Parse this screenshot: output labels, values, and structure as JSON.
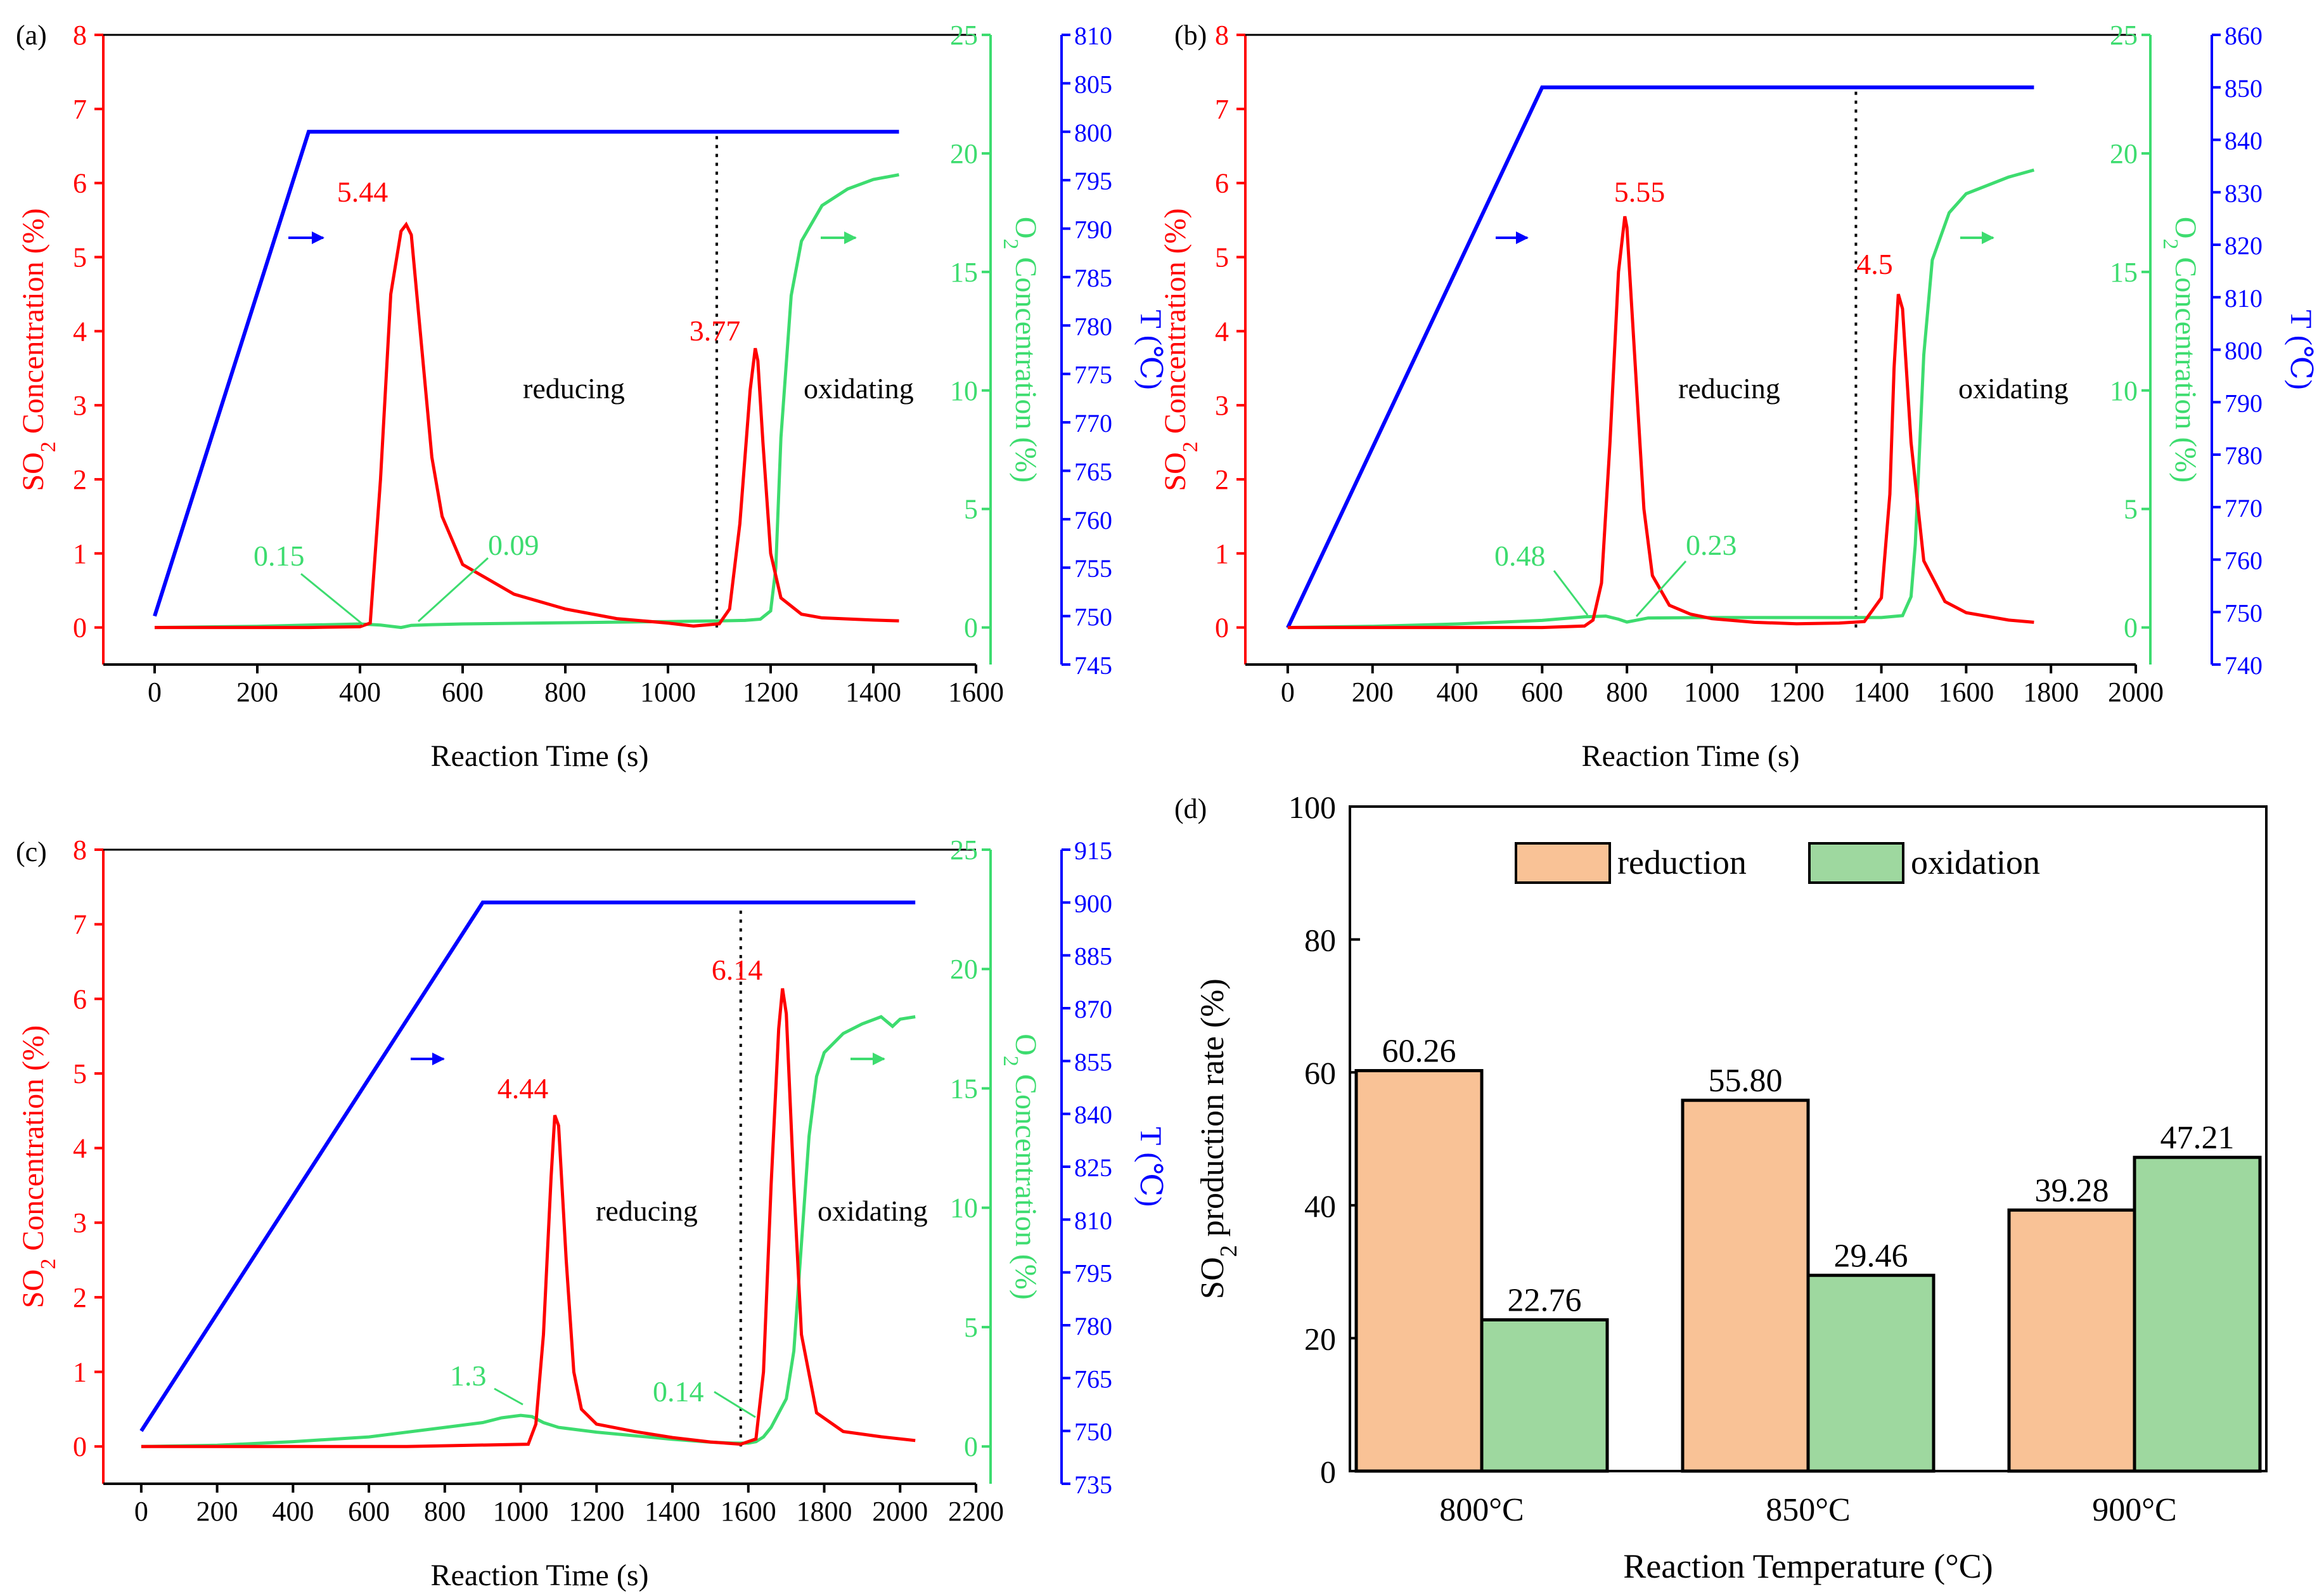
{
  "figure": {
    "colors": {
      "so2": "#ff0000",
      "o2": "#3ddc6f",
      "temp": "#0000ff",
      "frame": "#000000",
      "reduction_fill": "#f9c296",
      "oxidation_fill": "#9ed89f"
    }
  },
  "chart_data": [
    {
      "type": "line",
      "panel": "(a)",
      "xlabel": "Reaction Time (s)",
      "x_ticks": [
        "0",
        "200",
        "400",
        "600",
        "800",
        "1000",
        "1200",
        "1400",
        "1600"
      ],
      "xlim": [
        -100,
        1600
      ],
      "y_left": {
        "label_main": "SO",
        "label_sub": "2",
        "label_rest": " Concentration (%)",
        "ticks": [
          "0",
          "1",
          "2",
          "3",
          "4",
          "5",
          "6",
          "7",
          "8"
        ],
        "ylim": [
          -0.5,
          8
        ]
      },
      "y_o2": {
        "label_main": "O",
        "label_sub": "2",
        "label_rest": " Concentration (%)",
        "ticks": [
          "0",
          "5",
          "10",
          "15",
          "20",
          "25"
        ],
        "ylim": [
          -1.5625,
          25
        ]
      },
      "y_temp": {
        "label": "T (℃)",
        "ticks": [
          "745",
          "750",
          "755",
          "760",
          "765",
          "770",
          "775",
          "780",
          "785",
          "790",
          "795",
          "800",
          "805",
          "810"
        ],
        "ylim": [
          745,
          810
        ]
      },
      "series": [
        {
          "name": "SO2",
          "axis": "left",
          "color": "#ff0000",
          "x": [
            0,
            300,
            400,
            420,
            440,
            460,
            480,
            490,
            500,
            520,
            540,
            560,
            600,
            700,
            800,
            900,
            1000,
            1050,
            1100,
            1120,
            1140,
            1160,
            1170,
            1175,
            1185,
            1200,
            1220,
            1260,
            1300,
            1400,
            1450
          ],
          "y": [
            0,
            0,
            0.01,
            0.06,
            2.0,
            4.5,
            5.35,
            5.44,
            5.3,
            3.8,
            2.3,
            1.5,
            0.85,
            0.45,
            0.25,
            0.12,
            0.06,
            0.02,
            0.05,
            0.25,
            1.4,
            3.2,
            3.77,
            3.6,
            2.5,
            1.0,
            0.4,
            0.18,
            0.13,
            0.1,
            0.09
          ]
        },
        {
          "name": "O2",
          "axis": "o2",
          "color": "#3ddc6f",
          "x": [
            0,
            200,
            300,
            400,
            440,
            460,
            480,
            500,
            540,
            600,
            800,
            1000,
            1100,
            1150,
            1180,
            1200,
            1210,
            1220,
            1240,
            1260,
            1300,
            1350,
            1400,
            1450
          ],
          "y": [
            0,
            0.05,
            0.1,
            0.15,
            0.1,
            0.05,
            0,
            0.09,
            0.12,
            0.15,
            0.2,
            0.25,
            0.28,
            0.3,
            0.35,
            0.7,
            2.5,
            8,
            14,
            16.3,
            17.8,
            18.5,
            18.9,
            19.1
          ]
        },
        {
          "name": "T",
          "axis": "temp",
          "color": "#0000ff",
          "x": [
            0,
            300,
            1450
          ],
          "y": [
            750,
            800,
            800
          ]
        }
      ],
      "vline_x": 1095,
      "annotations": [
        {
          "text": "5.44",
          "x": 490,
          "y": 5.44,
          "color": "#ff0000"
        },
        {
          "text": "3.77",
          "x": 1172,
          "y": 3.77,
          "color": "#ff0000"
        },
        {
          "text": "0.15",
          "x": 420,
          "y": 0.15,
          "color": "#3ddc6f"
        },
        {
          "text": "0.09",
          "x": 500,
          "y": 0.09,
          "color": "#3ddc6f"
        },
        {
          "text": "reducing"
        },
        {
          "text": "oxidating"
        }
      ]
    },
    {
      "type": "line",
      "panel": "(b)",
      "xlabel": "Reaction Time (s)",
      "x_ticks": [
        "0",
        "200",
        "400",
        "600",
        "800",
        "1000",
        "1200",
        "1400",
        "1600",
        "1800",
        "2000"
      ],
      "xlim": [
        -100,
        2000
      ],
      "y_left": {
        "label_main": "SO",
        "label_sub": "2",
        "label_rest": " Concentration (%)",
        "ticks": [
          "0",
          "1",
          "2",
          "3",
          "4",
          "5",
          "6",
          "7",
          "8"
        ],
        "ylim": [
          -0.5,
          8
        ]
      },
      "y_o2": {
        "label_main": "O",
        "label_sub": "2",
        "label_rest": " Concentration (%)",
        "ticks": [
          "0",
          "5",
          "10",
          "15",
          "20",
          "25"
        ],
        "ylim": [
          -1.5625,
          25
        ]
      },
      "y_temp": {
        "label": "T (℃)",
        "ticks": [
          "740",
          "750",
          "760",
          "770",
          "780",
          "790",
          "800",
          "810",
          "820",
          "830",
          "840",
          "850",
          "860"
        ],
        "ylim": [
          740,
          860
        ]
      },
      "series": [
        {
          "name": "SO2",
          "axis": "left",
          "color": "#ff0000",
          "x": [
            0,
            600,
            700,
            720,
            740,
            760,
            780,
            795,
            800,
            820,
            840,
            860,
            900,
            950,
            1000,
            1100,
            1200,
            1300,
            1360,
            1400,
            1420,
            1430,
            1440,
            1450,
            1470,
            1500,
            1550,
            1600,
            1700,
            1760
          ],
          "y": [
            0,
            0,
            0.02,
            0.1,
            0.6,
            2.5,
            4.8,
            5.55,
            5.4,
            3.5,
            1.6,
            0.7,
            0.3,
            0.18,
            0.12,
            0.07,
            0.05,
            0.06,
            0.08,
            0.4,
            1.8,
            3.5,
            4.5,
            4.3,
            2.5,
            0.9,
            0.35,
            0.2,
            0.1,
            0.07
          ]
        },
        {
          "name": "O2",
          "axis": "o2",
          "color": "#3ddc6f",
          "x": [
            0,
            200,
            400,
            600,
            700,
            750,
            780,
            800,
            820,
            850,
            1000,
            1200,
            1400,
            1450,
            1470,
            1480,
            1490,
            1500,
            1520,
            1560,
            1600,
            1700,
            1760
          ],
          "y": [
            0,
            0.05,
            0.15,
            0.3,
            0.45,
            0.48,
            0.35,
            0.23,
            0.3,
            0.4,
            0.42,
            0.42,
            0.42,
            0.5,
            1.3,
            3.5,
            7.5,
            11.5,
            15.5,
            17.5,
            18.3,
            19,
            19.3
          ]
        },
        {
          "name": "T",
          "axis": "temp",
          "color": "#0000ff",
          "x": [
            0,
            600,
            1760
          ],
          "y": [
            747,
            850,
            850
          ]
        }
      ],
      "vline_x": 1340,
      "annotations": [
        {
          "text": "5.55",
          "x": 795,
          "y": 5.55,
          "color": "#ff0000"
        },
        {
          "text": "4.5",
          "x": 1440,
          "y": 4.5,
          "color": "#ff0000"
        },
        {
          "text": "0.48",
          "x": 750,
          "y": 0.48,
          "color": "#3ddc6f"
        },
        {
          "text": "0.23",
          "x": 800,
          "y": 0.23,
          "color": "#3ddc6f"
        },
        {
          "text": "reducing"
        },
        {
          "text": "oxidating"
        }
      ]
    },
    {
      "type": "line",
      "panel": "(c)",
      "xlabel": "Reaction Time (s)",
      "x_ticks": [
        "0",
        "200",
        "400",
        "600",
        "800",
        "1000",
        "1200",
        "1400",
        "1600",
        "1800",
        "2000",
        "2200"
      ],
      "xlim": [
        -100,
        2200
      ],
      "y_left": {
        "label_main": "SO",
        "label_sub": "2",
        "label_rest": " Concentration (%)",
        "ticks": [
          "0",
          "1",
          "2",
          "3",
          "4",
          "5",
          "6",
          "7",
          "8"
        ],
        "ylim": [
          -0.5,
          8
        ]
      },
      "y_o2": {
        "label_main": "O",
        "label_sub": "2",
        "label_rest": " Concentration (%)",
        "ticks": [
          "0",
          "5",
          "10",
          "15",
          "20",
          "25"
        ],
        "ylim": [
          -1.5625,
          25
        ]
      },
      "y_temp": {
        "label": "T (℃)",
        "ticks": [
          "735",
          "750",
          "765",
          "780",
          "795",
          "810",
          "825",
          "840",
          "855",
          "870",
          "885",
          "900",
          "915"
        ],
        "ylim": [
          735,
          915
        ]
      },
      "series": [
        {
          "name": "SO2",
          "axis": "left",
          "color": "#ff0000",
          "x": [
            0,
            700,
            1020,
            1040,
            1060,
            1080,
            1090,
            1100,
            1120,
            1140,
            1160,
            1200,
            1300,
            1400,
            1500,
            1580,
            1620,
            1640,
            1660,
            1680,
            1690,
            1700,
            1720,
            1740,
            1780,
            1850,
            1950,
            2040
          ],
          "y": [
            0,
            0,
            0.03,
            0.3,
            1.5,
            3.6,
            4.44,
            4.3,
            2.5,
            1.0,
            0.5,
            0.3,
            0.2,
            0.12,
            0.06,
            0.03,
            0.1,
            1.0,
            3.5,
            5.6,
            6.14,
            5.8,
            3.5,
            1.5,
            0.45,
            0.2,
            0.13,
            0.08
          ]
        },
        {
          "name": "O2",
          "axis": "o2",
          "color": "#3ddc6f",
          "x": [
            0,
            200,
            400,
            600,
            800,
            900,
            950,
            1000,
            1030,
            1060,
            1100,
            1200,
            1300,
            1400,
            1500,
            1560,
            1600,
            1620,
            1640,
            1660,
            1700,
            1720,
            1740,
            1760,
            1780,
            1800,
            1850,
            1900,
            1950,
            1980,
            2000,
            2040
          ],
          "y": [
            0,
            0.05,
            0.2,
            0.4,
            0.8,
            1.0,
            1.2,
            1.3,
            1.25,
            1.0,
            0.8,
            0.6,
            0.45,
            0.3,
            0.18,
            0.14,
            0.14,
            0.2,
            0.4,
            0.8,
            2.0,
            4.0,
            8.5,
            13,
            15.5,
            16.5,
            17.3,
            17.7,
            18.0,
            17.6,
            17.9,
            18.0
          ]
        },
        {
          "name": "T",
          "axis": "temp",
          "color": "#0000ff",
          "x": [
            0,
            900,
            2040
          ],
          "y": [
            750,
            900,
            900
          ]
        }
      ],
      "vline_x": 1580,
      "annotations": [
        {
          "text": "4.44",
          "x": 1090,
          "y": 4.44,
          "color": "#ff0000"
        },
        {
          "text": "6.14",
          "x": 1690,
          "y": 6.14,
          "color": "#ff0000"
        },
        {
          "text": "1.3",
          "x": 1000,
          "y": 1.3,
          "color": "#3ddc6f"
        },
        {
          "text": "0.14",
          "x": 1580,
          "y": 0.14,
          "color": "#3ddc6f"
        },
        {
          "text": "reducing"
        },
        {
          "text": "oxidating"
        }
      ]
    },
    {
      "type": "bar",
      "panel": "(d)",
      "categories": [
        "800°C",
        "850°C",
        "900°C"
      ],
      "series": [
        {
          "name": "reduction",
          "values": [
            60.26,
            55.8,
            39.28
          ],
          "labels": [
            "60.26",
            "55.80",
            "39.28"
          ]
        },
        {
          "name": "oxidation",
          "values": [
            22.76,
            29.46,
            47.21
          ],
          "labels": [
            "22.76",
            "29.46",
            "47.21"
          ]
        }
      ],
      "xlabel": "Reaction Temperature (°C)",
      "ylabel_main": "SO",
      "ylabel_sub": "2",
      "ylabel_rest": " production rate (%)",
      "y_ticks": [
        "0",
        "20",
        "40",
        "60",
        "80",
        "100"
      ],
      "ylim": [
        0,
        100
      ],
      "legend": "top-center"
    }
  ]
}
